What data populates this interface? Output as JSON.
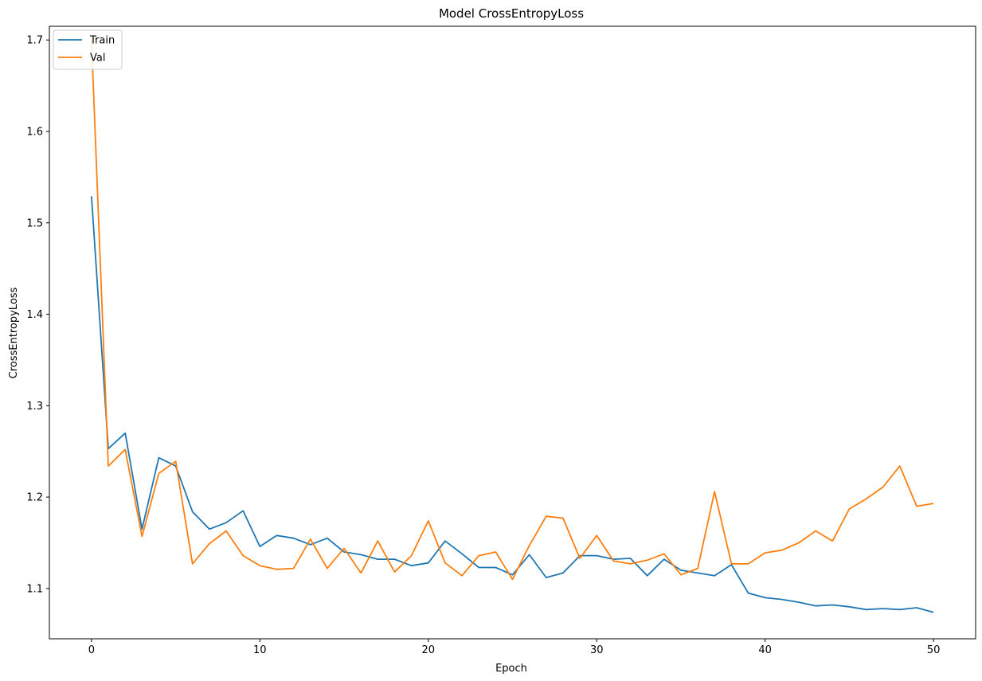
{
  "chart_data": {
    "type": "line",
    "title": "Model CrossEntropyLoss",
    "xlabel": "Epoch",
    "ylabel": "CrossEntropyLoss",
    "xlim": [
      -2.5,
      52.5
    ],
    "ylim": [
      1.045,
      1.715
    ],
    "xticks": [
      0,
      10,
      20,
      30,
      40,
      50
    ],
    "yticks": [
      1.1,
      1.2,
      1.3,
      1.4,
      1.5,
      1.6,
      1.7
    ],
    "grid": false,
    "legend_position": "top-left",
    "x": [
      0,
      1,
      2,
      3,
      4,
      5,
      6,
      7,
      8,
      9,
      10,
      11,
      12,
      13,
      14,
      15,
      16,
      17,
      18,
      19,
      20,
      21,
      22,
      23,
      24,
      25,
      26,
      27,
      28,
      29,
      30,
      31,
      32,
      33,
      34,
      35,
      36,
      37,
      38,
      39,
      40,
      41,
      42,
      43,
      44,
      45,
      46,
      47,
      48,
      49,
      50
    ],
    "series": [
      {
        "name": "Train",
        "color": "#1f77b4",
        "values": [
          1.529,
          1.253,
          1.27,
          1.165,
          1.243,
          1.234,
          1.184,
          1.165,
          1.172,
          1.185,
          1.146,
          1.158,
          1.155,
          1.148,
          1.155,
          1.14,
          1.137,
          1.132,
          1.132,
          1.125,
          1.128,
          1.152,
          1.138,
          1.123,
          1.123,
          1.115,
          1.137,
          1.112,
          1.117,
          1.136,
          1.136,
          1.132,
          1.133,
          1.114,
          1.132,
          1.12,
          1.117,
          1.114,
          1.126,
          1.095,
          1.09,
          1.088,
          1.085,
          1.081,
          1.082,
          1.08,
          1.077,
          1.078,
          1.077,
          1.079,
          1.074
        ]
      },
      {
        "name": "Val",
        "color": "#ff7f0e",
        "values": [
          1.7,
          1.234,
          1.252,
          1.157,
          1.226,
          1.239,
          1.127,
          1.149,
          1.163,
          1.136,
          1.125,
          1.121,
          1.122,
          1.154,
          1.122,
          1.144,
          1.117,
          1.152,
          1.118,
          1.136,
          1.174,
          1.128,
          1.114,
          1.136,
          1.14,
          1.11,
          1.147,
          1.179,
          1.177,
          1.133,
          1.158,
          1.13,
          1.127,
          1.131,
          1.138,
          1.115,
          1.122,
          1.206,
          1.127,
          1.127,
          1.139,
          1.142,
          1.15,
          1.163,
          1.152,
          1.187,
          1.198,
          1.211,
          1.234,
          1.19,
          1.193
        ]
      }
    ]
  }
}
